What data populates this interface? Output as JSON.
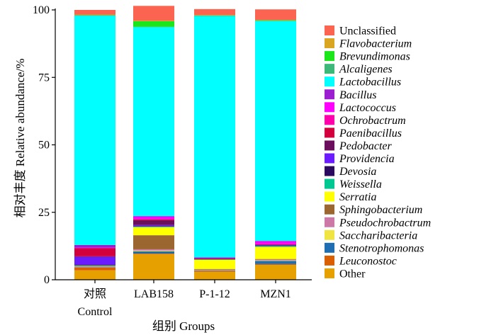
{
  "chart_data": {
    "type": "bar",
    "stacked": true,
    "xlabel": "组别 Groups",
    "ylabel": "相对丰度 Relative abundance/%",
    "ylim": [
      0,
      100
    ],
    "yticks": [
      0,
      25,
      50,
      75,
      100
    ],
    "grid": false,
    "legend_position": "right",
    "categories": [
      {
        "line1": "对照",
        "line2": "Control"
      },
      {
        "line1": "LAB158",
        "line2": ""
      },
      {
        "line1": "P-1-12",
        "line2": ""
      },
      {
        "line1": "MZN1",
        "line2": ""
      }
    ],
    "series": [
      {
        "name": "Other",
        "italic": false,
        "color": "#E6A000",
        "values": [
          3.5,
          9.5,
          3.0,
          5.5
        ]
      },
      {
        "name": "Leuconostoc",
        "italic": true,
        "color": "#D95F02",
        "values": [
          1.0,
          0.2,
          0.3,
          0.3
        ]
      },
      {
        "name": "Stenotrophomonas",
        "italic": true,
        "color": "#1F6EB4",
        "values": [
          0.2,
          0.8,
          0.2,
          1.2
        ]
      },
      {
        "name": "Saccharibacteria",
        "italic": true,
        "color": "#F0E442",
        "values": [
          0.1,
          0.3,
          0.2,
          0.2
        ]
      },
      {
        "name": "Pseudochrobactrum",
        "italic": true,
        "color": "#CC79A7",
        "values": [
          0.1,
          0.5,
          0.1,
          0.3
        ]
      },
      {
        "name": "Sphingobacterium",
        "italic": true,
        "color": "#9C6630",
        "values": [
          0.2,
          5.2,
          0.2,
          0.2
        ]
      },
      {
        "name": "Serratia",
        "italic": true,
        "color": "#FFFF00",
        "values": [
          0.1,
          3.0,
          3.5,
          4.5
        ]
      },
      {
        "name": "Weissella",
        "italic": true,
        "color": "#00C890",
        "values": [
          0.1,
          0.2,
          0.1,
          0.4
        ]
      },
      {
        "name": "Devosia",
        "italic": true,
        "color": "#2A0A5E",
        "values": [
          0.2,
          0.2,
          0.1,
          0.1
        ]
      },
      {
        "name": "Providencia",
        "italic": true,
        "color": "#6A1BFF",
        "values": [
          3.0,
          0.4,
          0.1,
          0.2
        ]
      },
      {
        "name": "Pedobacter",
        "italic": true,
        "color": "#6B0F5C",
        "values": [
          0.2,
          1.8,
          0.1,
          0.1
        ]
      },
      {
        "name": "Paenibacillus",
        "italic": true,
        "color": "#D2003C",
        "values": [
          3.0,
          0.2,
          0.1,
          0.1
        ]
      },
      {
        "name": "Ochrobactrum",
        "italic": true,
        "color": "#FF00AA",
        "values": [
          0.1,
          0.3,
          0.1,
          0.1
        ]
      },
      {
        "name": "Lactococcus",
        "italic": true,
        "color": "#FF00FF",
        "values": [
          0.1,
          0.8,
          0.1,
          1.0
        ]
      },
      {
        "name": "Bacillus",
        "italic": true,
        "color": "#9B1FD0",
        "values": [
          1.0,
          0.2,
          0.1,
          0.2
        ]
      },
      {
        "name": "Lactobacillus",
        "italic": true,
        "color": "#00FFFF",
        "values": [
          85.0,
          70.0,
          89.5,
          81.5
        ]
      },
      {
        "name": "Alcaligenes",
        "italic": true,
        "color": "#3CB878",
        "values": [
          0.1,
          0.2,
          0.1,
          0.1
        ]
      },
      {
        "name": "Brevundimonas",
        "italic": true,
        "color": "#1AE61A",
        "values": [
          0.1,
          2.0,
          0.1,
          0.2
        ]
      },
      {
        "name": "Flavobacterium",
        "italic": true,
        "color": "#DAA520",
        "values": [
          0.1,
          0.2,
          0.1,
          0.1
        ]
      },
      {
        "name": "Unclassified",
        "italic": false,
        "color": "#FA6450",
        "values": [
          1.8,
          5.5,
          2.2,
          3.9
        ]
      }
    ]
  }
}
